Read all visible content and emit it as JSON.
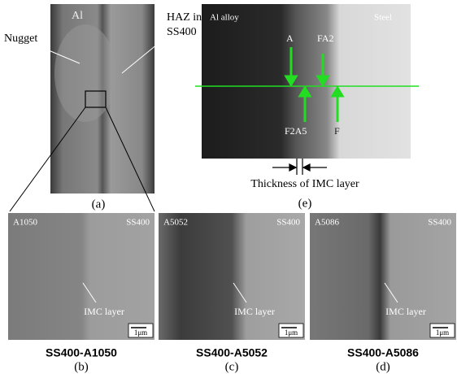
{
  "panel_a": {
    "label_al": "Al",
    "label_nugget": "Nugget",
    "label_haz_1": "HAZ in",
    "label_haz_2": "SS400",
    "caption": "(a)"
  },
  "panel_e": {
    "label_left": "Al alloy",
    "label_right": "Steel",
    "marker_a": "A",
    "marker_fa2": "FA2",
    "marker_f2a5": "F2A5",
    "marker_f": "F",
    "thickness_label": "Thickness of IMC layer",
    "caption": "(e)"
  },
  "panels": [
    {
      "left": "A1050",
      "right": "SS400",
      "imc": "IMC layer",
      "scale": "1μm",
      "title": "SS400-A1050",
      "caption": "(b)"
    },
    {
      "left": "A5052",
      "right": "SS400",
      "imc": "IMC layer",
      "scale": "1μm",
      "title": "SS400-A5052",
      "caption": "(c)"
    },
    {
      "left": "A5086",
      "right": "SS400",
      "imc": "IMC layer",
      "scale": "1μm",
      "title": "SS400-A5086",
      "caption": "(d)"
    }
  ]
}
